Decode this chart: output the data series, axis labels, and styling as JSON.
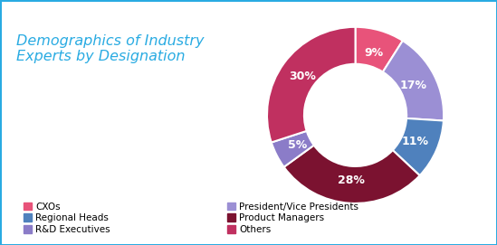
{
  "title": "Demographics of Industry\nExperts by Designation",
  "title_color": "#29abe2",
  "title_fontsize": 11.5,
  "slices": [
    9,
    17,
    11,
    28,
    5,
    30
  ],
  "labels": [
    "9%",
    "17%",
    "11%",
    "28%",
    "5%",
    "30%"
  ],
  "colors": [
    "#e8537a",
    "#9b8fd4",
    "#4f81bd",
    "#7b1230",
    "#8b7cc8",
    "#c03060"
  ],
  "legend_labels_left": [
    "CXOs",
    "Regional Heads",
    "R&D Executives"
  ],
  "legend_colors_left": [
    "#e8537a",
    "#4f81bd",
    "#8b7cc8"
  ],
  "legend_labels_right": [
    "President/Vice Presidents",
    "Product Managers",
    "Others"
  ],
  "legend_colors_right": [
    "#9b8fd4",
    "#7b1230",
    "#c03060"
  ],
  "background_color": "#ffffff",
  "border_color": "#29abe2",
  "label_fontsize": 9,
  "legend_fontsize": 7.5
}
